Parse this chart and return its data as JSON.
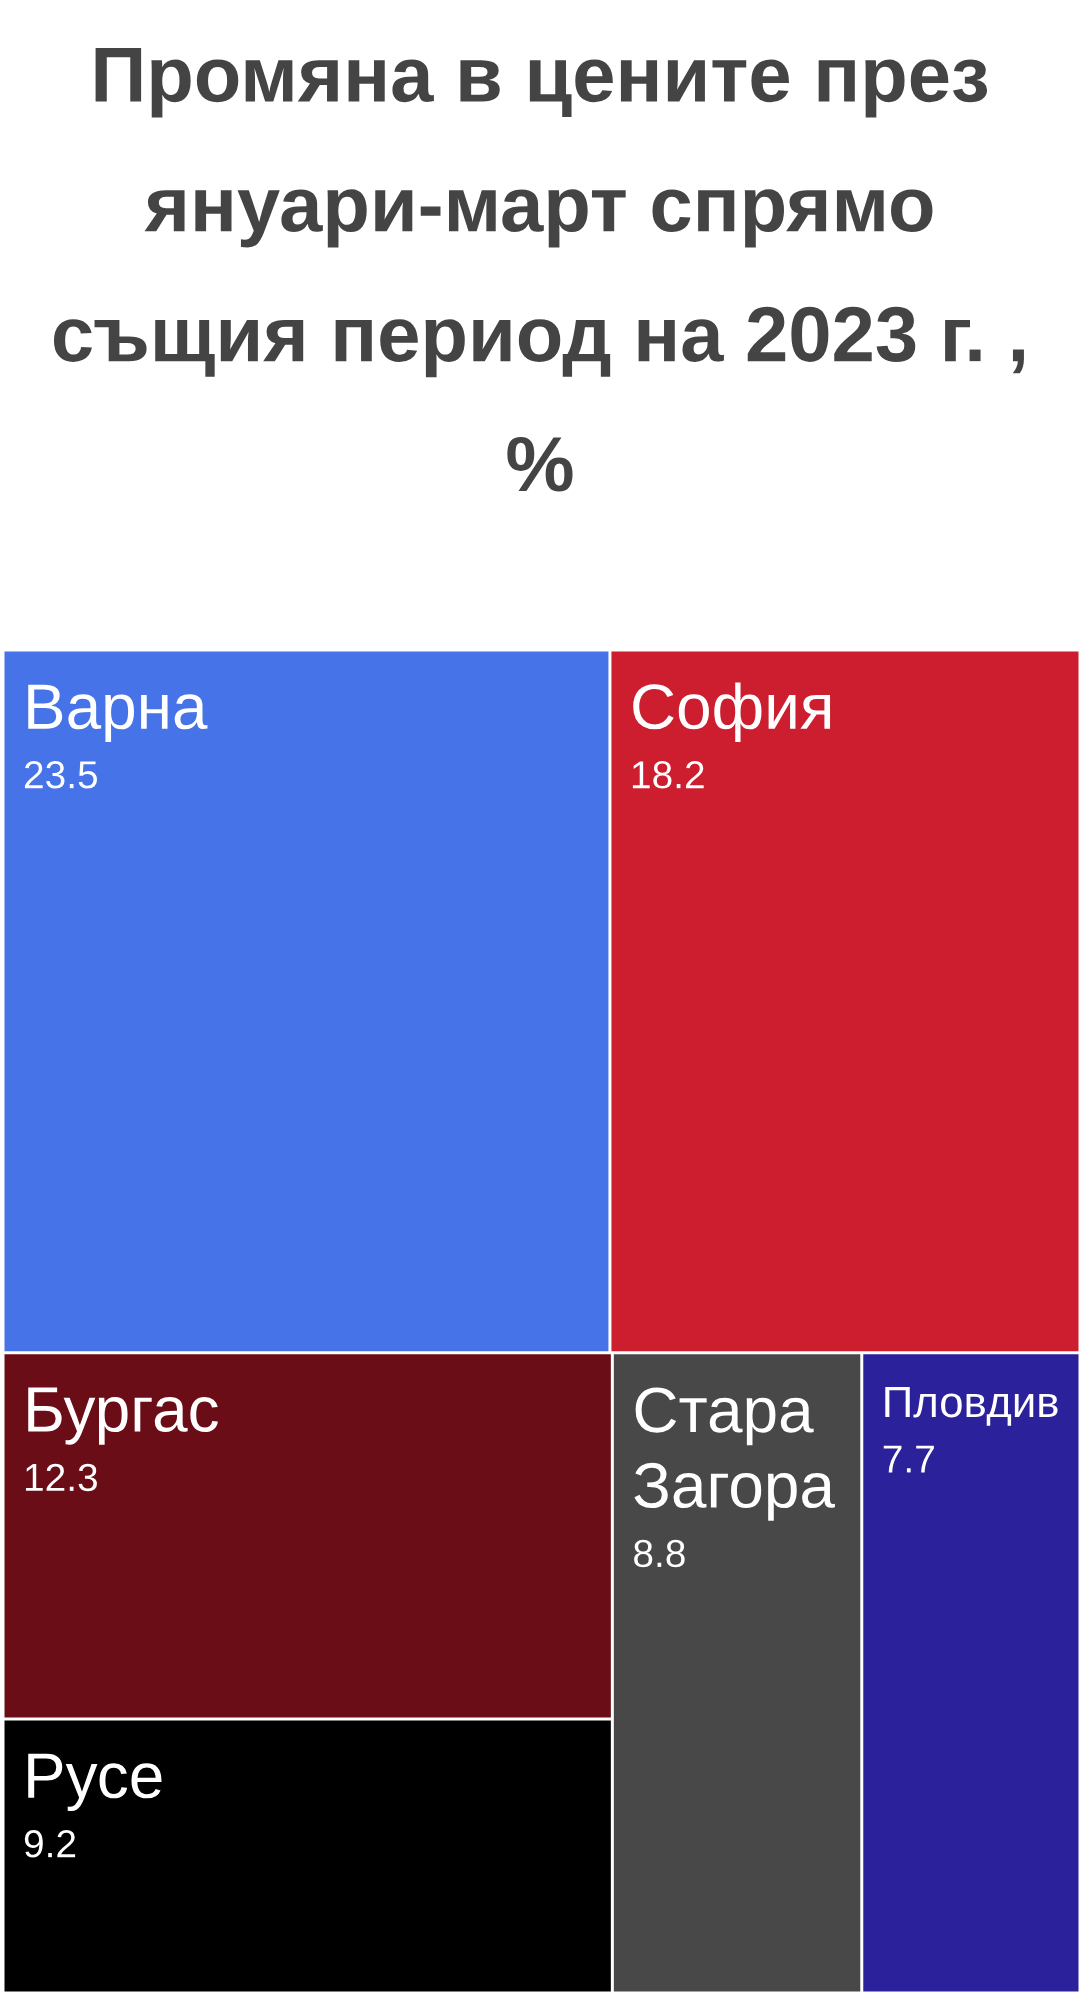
{
  "chart_data": {
    "type": "other",
    "title": "Промяна в цените през януари-март спрямо същия период на 2023 г. , %",
    "categories": [
      "Варна",
      "София",
      "Бургас",
      "Русе",
      "Стара Загора",
      "Пловдив"
    ],
    "values": [
      23.5,
      18.2,
      12.3,
      9.2,
      8.8,
      7.7
    ],
    "colors": [
      "#4773e8",
      "#cc1e2e",
      "#6b0d16",
      "#000000",
      "#484848",
      "#2b219b"
    ],
    "data_labels": true
  }
}
